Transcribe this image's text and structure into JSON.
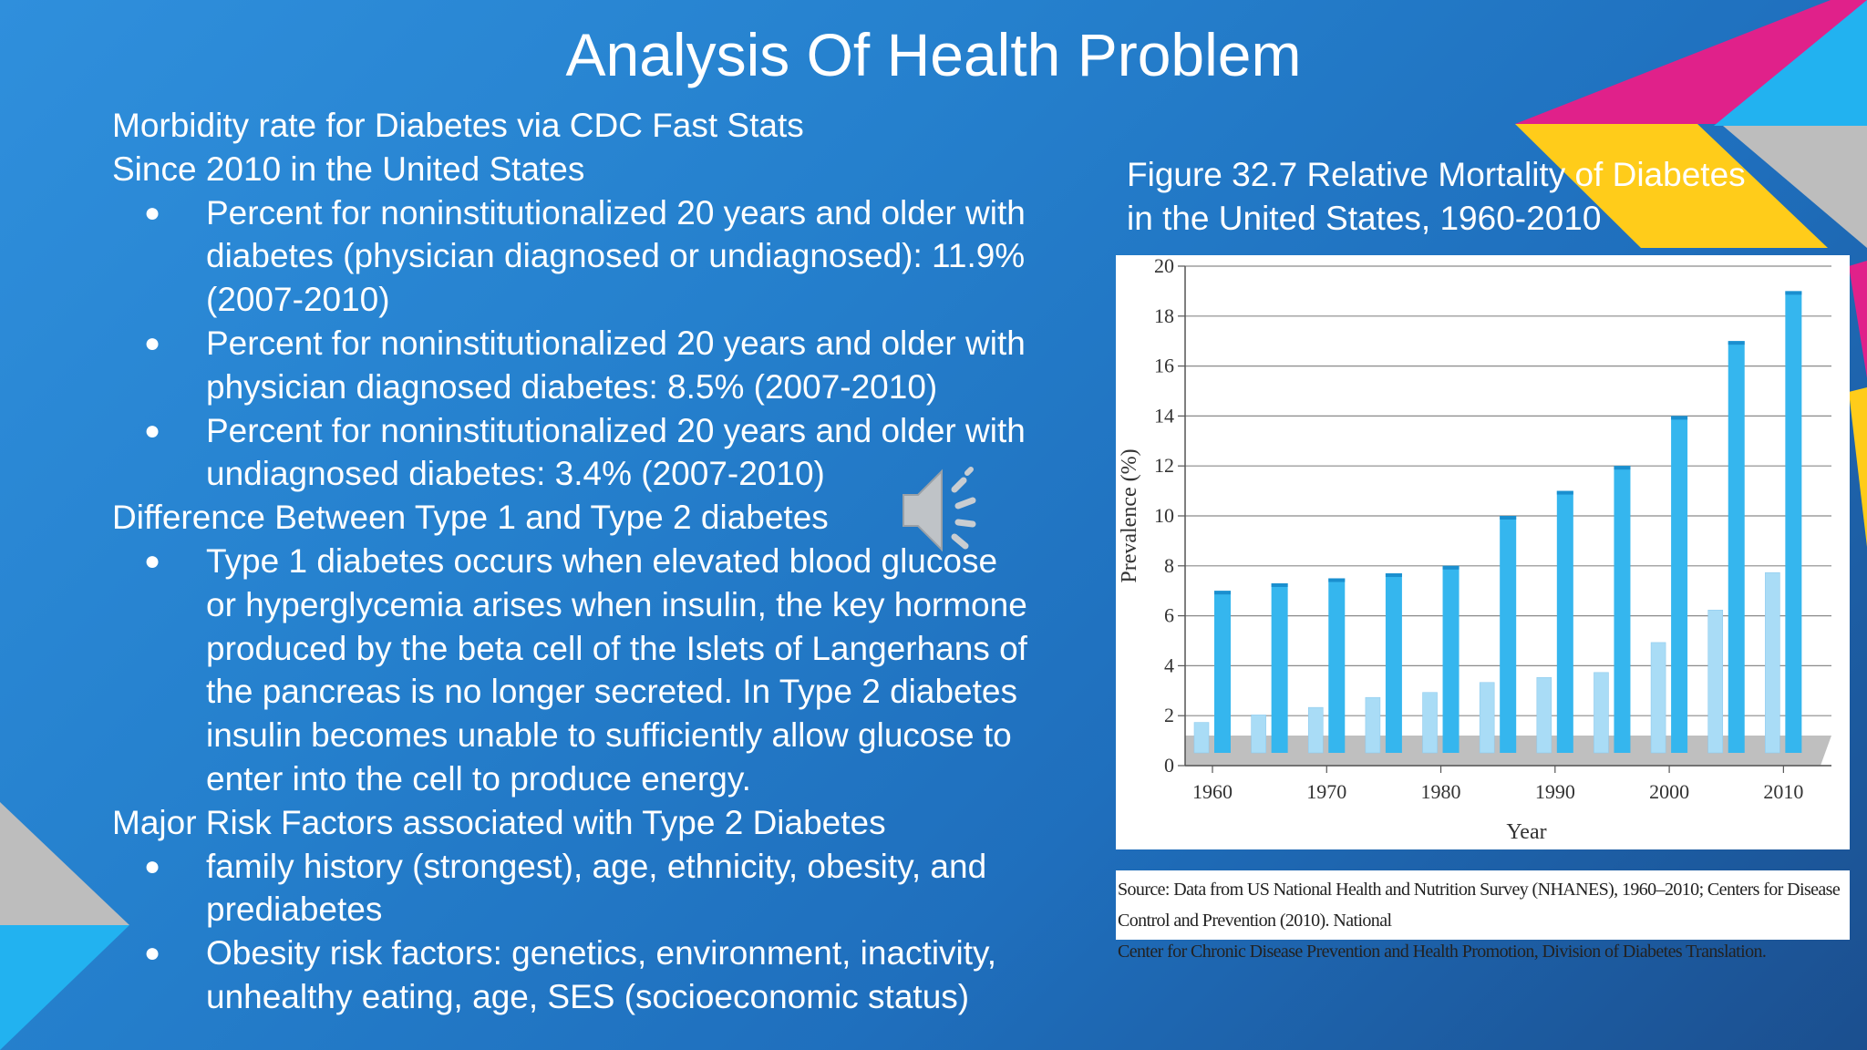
{
  "slide": {
    "title": "Analysis Of Health Problem",
    "sections": [
      {
        "heading_lines": [
          "Morbidity rate for Diabetes via CDC Fast Stats",
          "Since 2010 in the United States"
        ],
        "bullets": [
          [
            "Percent for noninstitutionalized 20 years and older with",
            "diabetes (physician diagnosed or undiagnosed): 11.9%",
            "(2007-2010)"
          ],
          [
            "Percent for noninstitutionalized 20 years and older with",
            "physician diagnosed diabetes: 8.5% (2007-2010)"
          ],
          [
            "Percent for noninstitutionalized 20 years and older with",
            "undiagnosed diabetes: 3.4% (2007-2010)"
          ]
        ]
      },
      {
        "heading_lines": [
          "Difference Between Type 1 and Type 2 diabetes"
        ],
        "bullets": [
          [
            "Type 1 diabetes occurs when elevated blood glucose",
            "or hyperglycemia arises when insulin, the key hormone",
            "produced by the beta cell of the Islets of Langerhans of",
            "the pancreas is no longer secreted. In Type 2 diabetes",
            "insulin becomes unable to sufficiently allow glucose to",
            "enter into the cell to produce energy."
          ]
        ]
      },
      {
        "heading_lines": [
          "Major Risk Factors associated with Type 2 Diabetes"
        ],
        "bullets": [
          [
            "family history (strongest), age, ethnicity, obesity, and",
            "prediabetes"
          ],
          [
            "Obesity risk factors: genetics, environment, inactivity,",
            "unhealthy eating, age, SES (socioeconomic status)"
          ]
        ]
      }
    ],
    "bullet_glyph": "●",
    "figure_caption_lines": [
      "Figure 32.7 Relative Mortality of Diabetes",
      "in the United States, 1960-2010"
    ],
    "source_lines": [
      "Source: Data from US National Health and Nutrition Survey (NHANES), 1960–2010; Centers for Disease Control and Prevention (2010). National",
      "Center for Chronic Disease Prevention and Health Promotion, Division of Diabetes Translation."
    ],
    "icons": {
      "audio": "speaker-icon"
    },
    "colors": {
      "accent_pink": "#e0218a",
      "accent_yellow": "#ffcc1a",
      "accent_cyan": "#22b2f0",
      "bar_dark": "#35b6ee",
      "bar_light": "#a9dcf6",
      "floor": "#bfbfbf"
    }
  },
  "chart_data": {
    "type": "bar",
    "xlabel": "Year",
    "ylabel": "Prevalence (%)",
    "ylim": [
      0,
      20
    ],
    "yticks": [
      "0",
      "2",
      "4",
      "6",
      "8",
      "10",
      "12",
      "14",
      "16",
      "18",
      "20"
    ],
    "xtick_labels": [
      "1960",
      "1970",
      "1980",
      "1990",
      "2000",
      "2010"
    ],
    "categories": [
      "1960",
      "1965",
      "1970",
      "1975",
      "1980",
      "1985",
      "1990",
      "1995",
      "2000",
      "2005",
      "2010"
    ],
    "series": [
      {
        "values": [
          1.0,
          1.3,
          1.6,
          2.0,
          2.2,
          2.6,
          2.8,
          3.0,
          4.2,
          5.5,
          7.0
        ]
      },
      {
        "values": [
          7.0,
          7.3,
          7.5,
          7.7,
          8.0,
          10.0,
          11.0,
          12.0,
          14.0,
          17.0,
          19.0
        ]
      }
    ],
    "grid": true
  }
}
